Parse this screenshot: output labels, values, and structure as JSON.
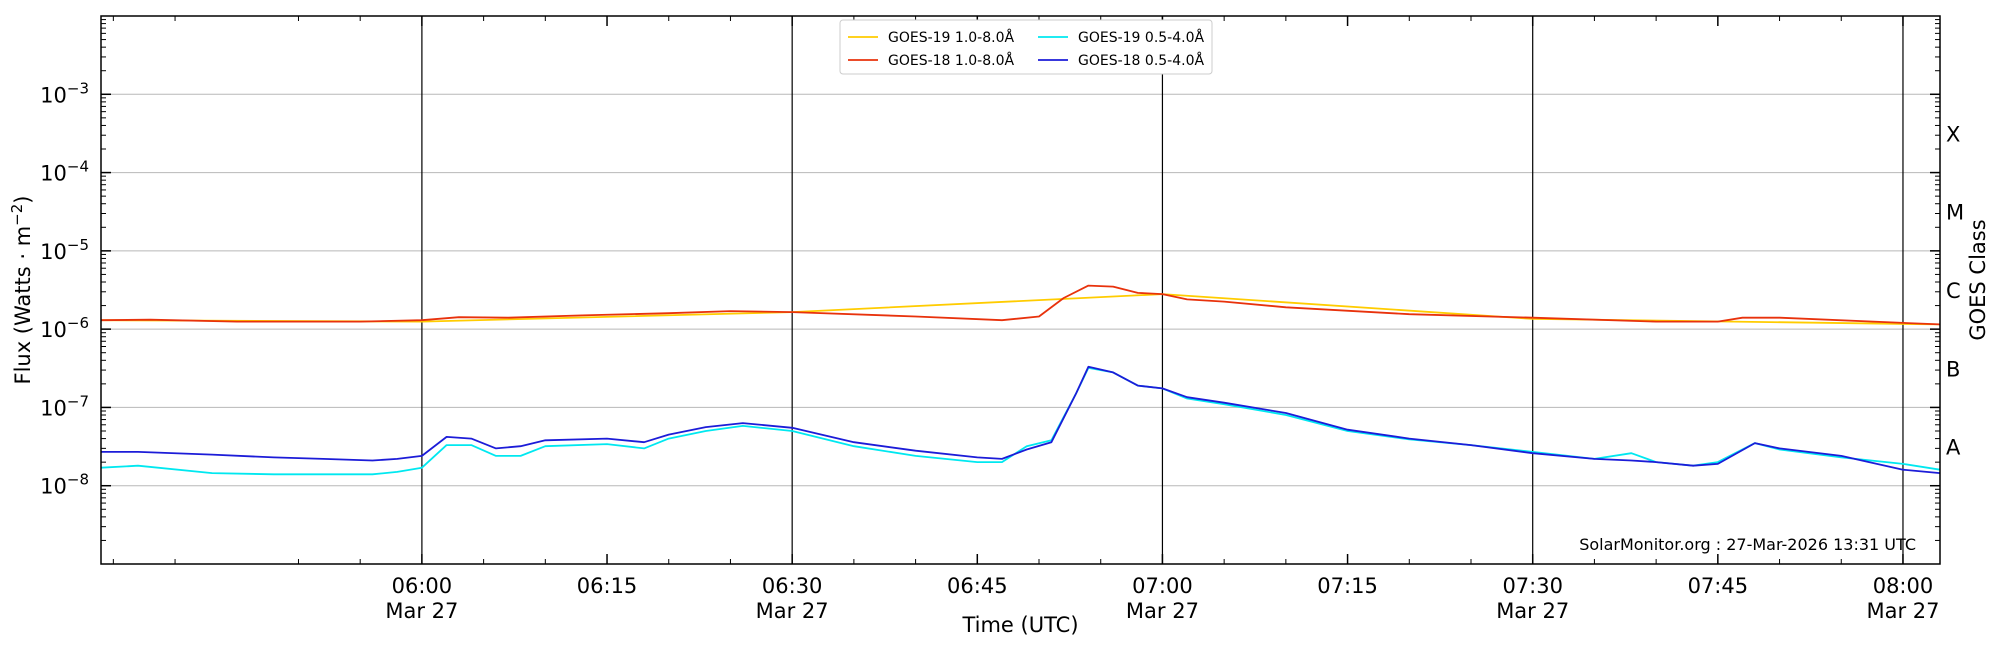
{
  "chart_data": {
    "type": "line",
    "xlabel": "Time (UTC)",
    "ylabel": "Flux (Watts · m",
    "ylabel_exponent": "−2",
    "ylabel_suffix": ")",
    "right_label": "GOES Class",
    "yscale": "log",
    "ylim": [
      1e-09,
      0.01
    ],
    "xlim": [
      "05:34",
      "08:03"
    ],
    "x_ticks": [
      {
        "time": "06:00",
        "label": "06:00",
        "sublabel": "Mar 27",
        "major": true
      },
      {
        "time": "06:15",
        "label": "06:15",
        "sublabel": "",
        "major": false
      },
      {
        "time": "06:30",
        "label": "06:30",
        "sublabel": "Mar 27",
        "major": true
      },
      {
        "time": "06:45",
        "label": "06:45",
        "sublabel": "",
        "major": false
      },
      {
        "time": "07:00",
        "label": "07:00",
        "sublabel": "Mar 27",
        "major": true
      },
      {
        "time": "07:15",
        "label": "07:15",
        "sublabel": "",
        "major": false
      },
      {
        "time": "07:30",
        "label": "07:30",
        "sublabel": "Mar 27",
        "major": true
      },
      {
        "time": "07:45",
        "label": "07:45",
        "sublabel": "",
        "major": false
      },
      {
        "time": "08:00",
        "label": "08:00",
        "sublabel": "Mar 27",
        "major": true
      }
    ],
    "y_ticks": [
      {
        "value": 1e-08,
        "base": "10",
        "exp": "−8"
      },
      {
        "value": 1e-07,
        "base": "10",
        "exp": "−7"
      },
      {
        "value": 1e-06,
        "base": "10",
        "exp": "−6"
      },
      {
        "value": 1e-05,
        "base": "10",
        "exp": "−5"
      },
      {
        "value": 0.0001,
        "base": "10",
        "exp": "−4"
      },
      {
        "value": 0.001,
        "base": "10",
        "exp": "−3"
      }
    ],
    "goes_classes": [
      {
        "label": "A",
        "value": 1e-08
      },
      {
        "label": "B",
        "value": 1e-07
      },
      {
        "label": "C",
        "value": 1e-06
      },
      {
        "label": "M",
        "value": 1e-05
      },
      {
        "label": "X",
        "value": 0.0001
      }
    ],
    "grid": true,
    "legend_position": "top-center",
    "footer": "SolarMonitor.org : 27-Mar-2026 13:31 UTC",
    "series": [
      {
        "name": "GOES-19 1.0-8.0Å",
        "color": "#ffcc00",
        "x": [
          "05:34",
          "06:00",
          "06:30",
          "07:00",
          "07:30",
          "08:03"
        ],
        "values": [
          1.3e-06,
          1.25e-06,
          1.65e-06,
          2.8e-06,
          1.35e-06,
          1.15e-06
        ]
      },
      {
        "name": "GOES-18 1.0-8.0Å",
        "color": "#e8320c",
        "x": [
          "05:34",
          "05:38",
          "05:45",
          "05:55",
          "06:00",
          "06:03",
          "06:07",
          "06:13",
          "06:20",
          "06:25",
          "06:30",
          "06:40",
          "06:47",
          "06:50",
          "06:52",
          "06:54",
          "06:56",
          "06:58",
          "07:00",
          "07:02",
          "07:05",
          "07:10",
          "07:20",
          "07:30",
          "07:40",
          "07:45",
          "07:47",
          "07:50",
          "08:00",
          "08:03"
        ],
        "values": [
          1.3e-06,
          1.32e-06,
          1.25e-06,
          1.25e-06,
          1.3e-06,
          1.42e-06,
          1.4e-06,
          1.5e-06,
          1.6e-06,
          1.7e-06,
          1.65e-06,
          1.45e-06,
          1.3e-06,
          1.45e-06,
          2.5e-06,
          3.6e-06,
          3.5e-06,
          2.9e-06,
          2.8e-06,
          2.4e-06,
          2.25e-06,
          1.9e-06,
          1.55e-06,
          1.4e-06,
          1.25e-06,
          1.25e-06,
          1.4e-06,
          1.4e-06,
          1.2e-06,
          1.15e-06
        ]
      },
      {
        "name": "GOES-19 0.5-4.0Å",
        "color": "#00e8f0",
        "x": [
          "05:34",
          "05:37",
          "05:43",
          "05:48",
          "05:52",
          "05:56",
          "05:58",
          "06:00",
          "06:02",
          "06:04",
          "06:06",
          "06:08",
          "06:10",
          "06:15",
          "06:18",
          "06:20",
          "06:23",
          "06:26",
          "06:30",
          "06:35",
          "06:40",
          "06:45",
          "06:47",
          "06:49",
          "06:51",
          "06:53",
          "06:54",
          "06:56",
          "06:58",
          "07:00",
          "07:02",
          "07:05",
          "07:10",
          "07:15",
          "07:20",
          "07:25",
          "07:30",
          "07:35",
          "07:38",
          "07:40",
          "07:43",
          "07:45",
          "07:48",
          "07:50",
          "07:55",
          "08:00",
          "08:03"
        ],
        "values": [
          1.7e-08,
          1.8e-08,
          1.45e-08,
          1.4e-08,
          1.4e-08,
          1.4e-08,
          1.5e-08,
          1.7e-08,
          3.3e-08,
          3.3e-08,
          2.4e-08,
          2.4e-08,
          3.2e-08,
          3.4e-08,
          3e-08,
          4e-08,
          5e-08,
          5.8e-08,
          5e-08,
          3.2e-08,
          2.4e-08,
          2e-08,
          2e-08,
          3.2e-08,
          3.8e-08,
          1.5e-07,
          3.2e-07,
          2.8e-07,
          1.9e-07,
          1.75e-07,
          1.3e-07,
          1.1e-07,
          8e-08,
          5e-08,
          3.9e-08,
          3.3e-08,
          2.7e-08,
          2.2e-08,
          2.6e-08,
          2e-08,
          1.8e-08,
          2e-08,
          3.5e-08,
          2.9e-08,
          2.3e-08,
          1.9e-08,
          1.6e-08
        ]
      },
      {
        "name": "GOES-18 0.5-4.0Å",
        "color": "#1c1cd8",
        "x": [
          "05:34",
          "05:37",
          "05:43",
          "05:48",
          "05:52",
          "05:56",
          "05:58",
          "06:00",
          "06:02",
          "06:04",
          "06:06",
          "06:08",
          "06:10",
          "06:15",
          "06:18",
          "06:20",
          "06:23",
          "06:26",
          "06:30",
          "06:35",
          "06:40",
          "06:45",
          "06:47",
          "06:49",
          "06:51",
          "06:53",
          "06:54",
          "06:56",
          "06:58",
          "07:00",
          "07:02",
          "07:05",
          "07:10",
          "07:15",
          "07:20",
          "07:25",
          "07:30",
          "07:35",
          "07:38",
          "07:40",
          "07:43",
          "07:45",
          "07:48",
          "07:50",
          "07:55",
          "08:00",
          "08:03"
        ],
        "values": [
          2.7e-08,
          2.7e-08,
          2.5e-08,
          2.3e-08,
          2.2e-08,
          2.1e-08,
          2.2e-08,
          2.4e-08,
          4.2e-08,
          4e-08,
          3e-08,
          3.2e-08,
          3.8e-08,
          4e-08,
          3.6e-08,
          4.5e-08,
          5.6e-08,
          6.3e-08,
          5.5e-08,
          3.6e-08,
          2.8e-08,
          2.3e-08,
          2.2e-08,
          2.9e-08,
          3.6e-08,
          1.5e-07,
          3.3e-07,
          2.8e-07,
          1.9e-07,
          1.75e-07,
          1.35e-07,
          1.15e-07,
          8.5e-08,
          5.2e-08,
          4e-08,
          3.3e-08,
          2.6e-08,
          2.2e-08,
          2.1e-08,
          2e-08,
          1.8e-08,
          1.9e-08,
          3.5e-08,
          3e-08,
          2.4e-08,
          1.6e-08,
          1.45e-08
        ]
      }
    ]
  }
}
